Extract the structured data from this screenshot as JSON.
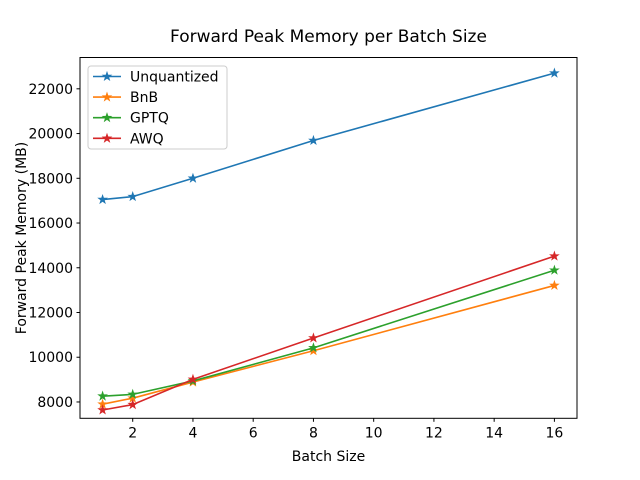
{
  "chart_data": {
    "type": "line",
    "title": "Forward Peak Memory per Batch Size",
    "xlabel": "Batch Size",
    "ylabel": "Forward Peak Memory (MB)",
    "x": [
      1,
      2,
      4,
      8,
      16
    ],
    "series": [
      {
        "name": "Unquantized",
        "color": "#1f77b4",
        "values": [
          17050,
          17180,
          18000,
          19690,
          22700
        ]
      },
      {
        "name": "BnB",
        "color": "#ff7f0e",
        "values": [
          7900,
          8170,
          8890,
          10290,
          13210
        ]
      },
      {
        "name": "GPTQ",
        "color": "#2ca02c",
        "values": [
          8260,
          8340,
          8940,
          10420,
          13890
        ]
      },
      {
        "name": "AWQ",
        "color": "#d62728",
        "values": [
          7640,
          7880,
          9010,
          10860,
          14520
        ]
      }
    ],
    "x_ticks": [
      2,
      4,
      6,
      8,
      10,
      12,
      14,
      16
    ],
    "y_ticks": [
      8000,
      10000,
      12000,
      14000,
      16000,
      18000,
      20000,
      22000
    ],
    "xlim": [
      0.25,
      16.75
    ],
    "ylim": [
      7270,
      23400
    ],
    "grid": false,
    "marker": "star",
    "legend_position": "upper-left",
    "legend_border_color": "#cccccc",
    "axis_color": "#000000",
    "text_color": "#000000",
    "background_color": "#ffffff"
  }
}
